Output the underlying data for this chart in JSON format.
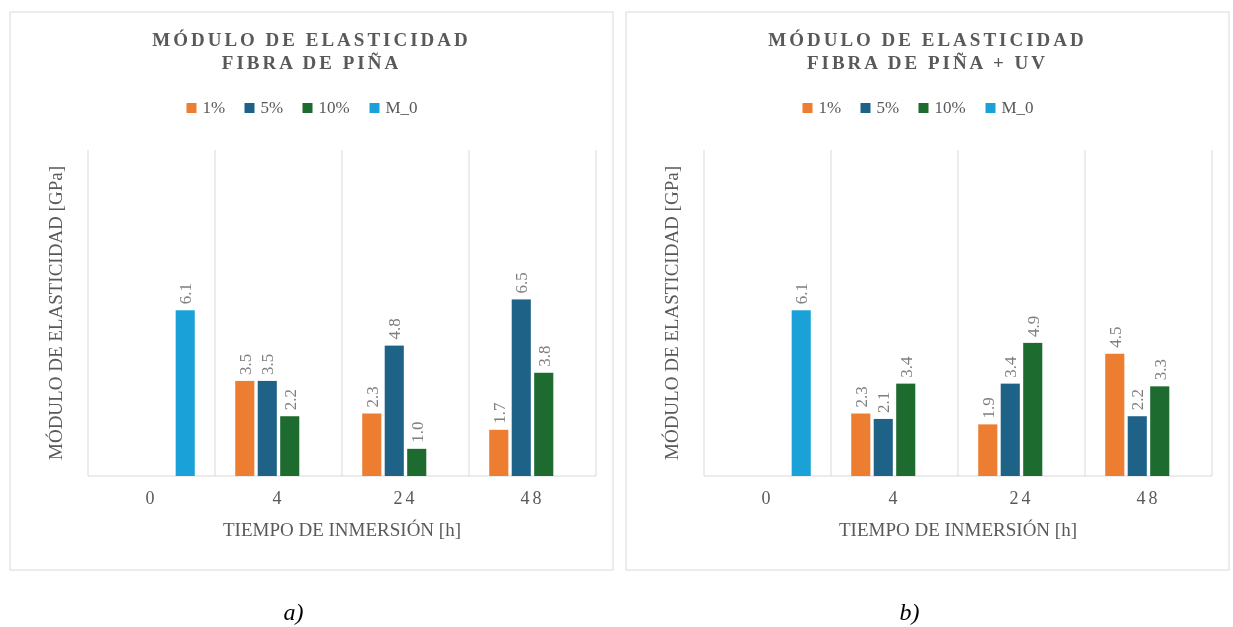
{
  "chart_data": [
    {
      "type": "bar",
      "title": "MÓDULO DE ELASTICIDAD\nFIBRA DE PIÑA",
      "xlabel": "TIEMPO DE INMERSIÓN [h]",
      "ylabel": "MÓDULO DE ELASTICIDAD  [GPa]",
      "categories": [
        "0",
        "4",
        "24",
        "48"
      ],
      "ylim": [
        0,
        12
      ],
      "grid": "x",
      "legend": "top",
      "tick_labels": "x",
      "annotations": [
        "a)"
      ],
      "series": [
        {
          "name": "1%",
          "color": "#ed7d31",
          "values": [
            null,
            3.5,
            2.3,
            1.7
          ],
          "value_labels": [
            null,
            "3.5",
            "2.3",
            "1.7"
          ]
        },
        {
          "name": "5%",
          "color": "#1f6288",
          "values": [
            null,
            3.5,
            4.8,
            6.5
          ],
          "value_labels": [
            null,
            "3.5",
            "4.8",
            "6.5"
          ]
        },
        {
          "name": "10%",
          "color": "#1e6b30",
          "values": [
            null,
            2.2,
            1.0,
            3.8
          ],
          "value_labels": [
            null,
            "2.2",
            "1.0",
            "3.8"
          ]
        },
        {
          "name": "M_0",
          "color": "#1aa2d8",
          "values": [
            6.1,
            null,
            null,
            null
          ],
          "value_labels": [
            "6.1",
            null,
            null,
            null
          ]
        }
      ]
    },
    {
      "type": "bar",
      "title": "MÓDULO DE ELASTICIDAD\nFIBRA DE PIÑA + UV",
      "xlabel": "TIEMPO DE INMERSIÓN [h]",
      "ylabel": "MÓDULO DE ELASTICIDAD  [GPa]",
      "categories": [
        "0",
        "4",
        "24",
        "48"
      ],
      "ylim": [
        0,
        12
      ],
      "grid": "x",
      "legend": "top",
      "tick_labels": "x",
      "annotations": [
        "b)"
      ],
      "series": [
        {
          "name": "1%",
          "color": "#ed7d31",
          "values": [
            null,
            2.3,
            1.9,
            4.5
          ],
          "value_labels": [
            null,
            "2.3",
            "1.9",
            "4.5"
          ]
        },
        {
          "name": "5%",
          "color": "#1f6288",
          "values": [
            null,
            2.1,
            3.4,
            2.2
          ],
          "value_labels": [
            null,
            "2.1",
            "3.4",
            "2.2"
          ]
        },
        {
          "name": "10%",
          "color": "#1e6b30",
          "values": [
            null,
            3.4,
            4.9,
            3.3
          ],
          "value_labels": [
            null,
            "3.4",
            "4.9",
            "3.3"
          ]
        },
        {
          "name": "M_0",
          "color": "#1aa2d8",
          "values": [
            6.1,
            null,
            null,
            null
          ],
          "value_labels": [
            "6.1",
            null,
            null,
            null
          ]
        }
      ]
    }
  ]
}
